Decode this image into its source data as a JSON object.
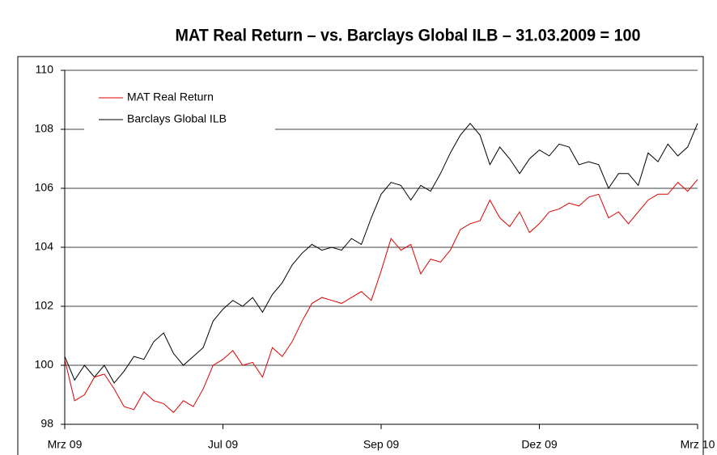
{
  "chart_data": {
    "type": "line",
    "title": "MAT Real Return – vs. Barclays Global ILB – 31.03.2009 = 100",
    "x": [
      0,
      1,
      2,
      3,
      4,
      5,
      6,
      7,
      8,
      9,
      10,
      11,
      12,
      13,
      14,
      15,
      16,
      17,
      18,
      19,
      20,
      21,
      22,
      23,
      24,
      25,
      26,
      27,
      28,
      29,
      30,
      31,
      32,
      33,
      34,
      35,
      36,
      37,
      38,
      39,
      40,
      41,
      42,
      43,
      44,
      45,
      46,
      47,
      48,
      49,
      50,
      51,
      52,
      53,
      54,
      55,
      56,
      57,
      58,
      59,
      60,
      61,
      62,
      63,
      64
    ],
    "series": [
      {
        "name": "MAT Real Return",
        "color": "#e00000",
        "values": [
          100.2,
          98.8,
          99.0,
          99.6,
          99.7,
          99.2,
          98.6,
          98.5,
          99.1,
          98.8,
          98.7,
          98.4,
          98.8,
          98.6,
          99.2,
          100.0,
          100.2,
          100.5,
          100.0,
          100.1,
          99.6,
          100.6,
          100.3,
          100.8,
          101.5,
          102.1,
          102.3,
          102.2,
          102.1,
          102.3,
          102.5,
          102.2,
          103.2,
          104.3,
          103.9,
          104.1,
          103.1,
          103.6,
          103.5,
          103.9,
          104.6,
          104.8,
          104.9,
          105.6,
          105.0,
          104.7,
          105.2,
          104.5,
          104.8,
          105.2,
          105.3,
          105.5,
          105.4,
          105.7,
          105.8,
          105.0,
          105.2,
          104.8,
          105.2,
          105.6,
          105.8,
          105.8,
          106.2,
          105.9,
          106.3
        ]
      },
      {
        "name": "Barclays Global ILB",
        "color": "#000000",
        "values": [
          100.3,
          99.5,
          100,
          99.6,
          100,
          99.4,
          99.8,
          100.3,
          100.2,
          100.8,
          101.1,
          100.4,
          100.0,
          100.3,
          100.6,
          101.5,
          101.9,
          102.2,
          102.0,
          102.3,
          101.8,
          102.4,
          102.8,
          103.4,
          103.8,
          104.1,
          103.9,
          104.0,
          103.9,
          104.3,
          104.1,
          105.0,
          105.8,
          106.2,
          106.1,
          105.6,
          106.1,
          105.9,
          106.5,
          107.2,
          107.8,
          108.2,
          107.8,
          106.8,
          107.4,
          107.0,
          106.5,
          107.0,
          107.3,
          107.1,
          107.5,
          107.4,
          106.8,
          106.9,
          106.8,
          106.0,
          106.5,
          106.5,
          106.1,
          107.2,
          106.9,
          107.5,
          107.1,
          107.4,
          108.2
        ]
      }
    ],
    "xlim": [
      0,
      64
    ],
    "xticks": [
      {
        "value": 0,
        "label": "Mrz 09"
      },
      {
        "value": 16,
        "label": "Jul 09"
      },
      {
        "value": 32,
        "label": "Sep 09"
      },
      {
        "value": 48,
        "label": "Dez 09"
      },
      {
        "value": 64,
        "label": "Mrz 10"
      }
    ],
    "ylim": [
      98,
      110
    ],
    "yticks": [
      98,
      100,
      102,
      104,
      106,
      108,
      110
    ],
    "grid": true,
    "legend": "upper left"
  }
}
